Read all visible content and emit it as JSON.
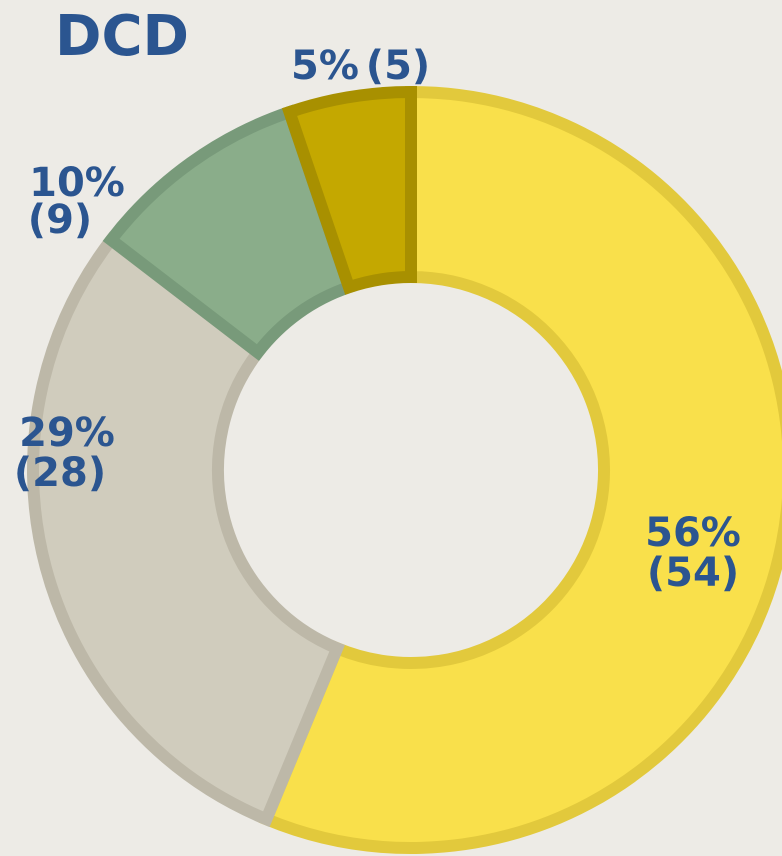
{
  "chart_data": {
    "type": "donut",
    "title": "DCD",
    "values": [
      54,
      28,
      9,
      5
    ],
    "value_labels": [
      "(54)",
      "(28)",
      "(9)",
      "(5)"
    ],
    "percentages": [
      56,
      29,
      10,
      5
    ],
    "percentage_labels": [
      "56%",
      "29%",
      "10%",
      "5%"
    ],
    "colors": [
      "#f9e04b",
      "#d0ccbd",
      "#8aad8a",
      "#c4a800"
    ],
    "edge_colors": [
      "#e2c93c",
      "#bdb8a8",
      "#789a7a",
      "#a89000"
    ]
  }
}
